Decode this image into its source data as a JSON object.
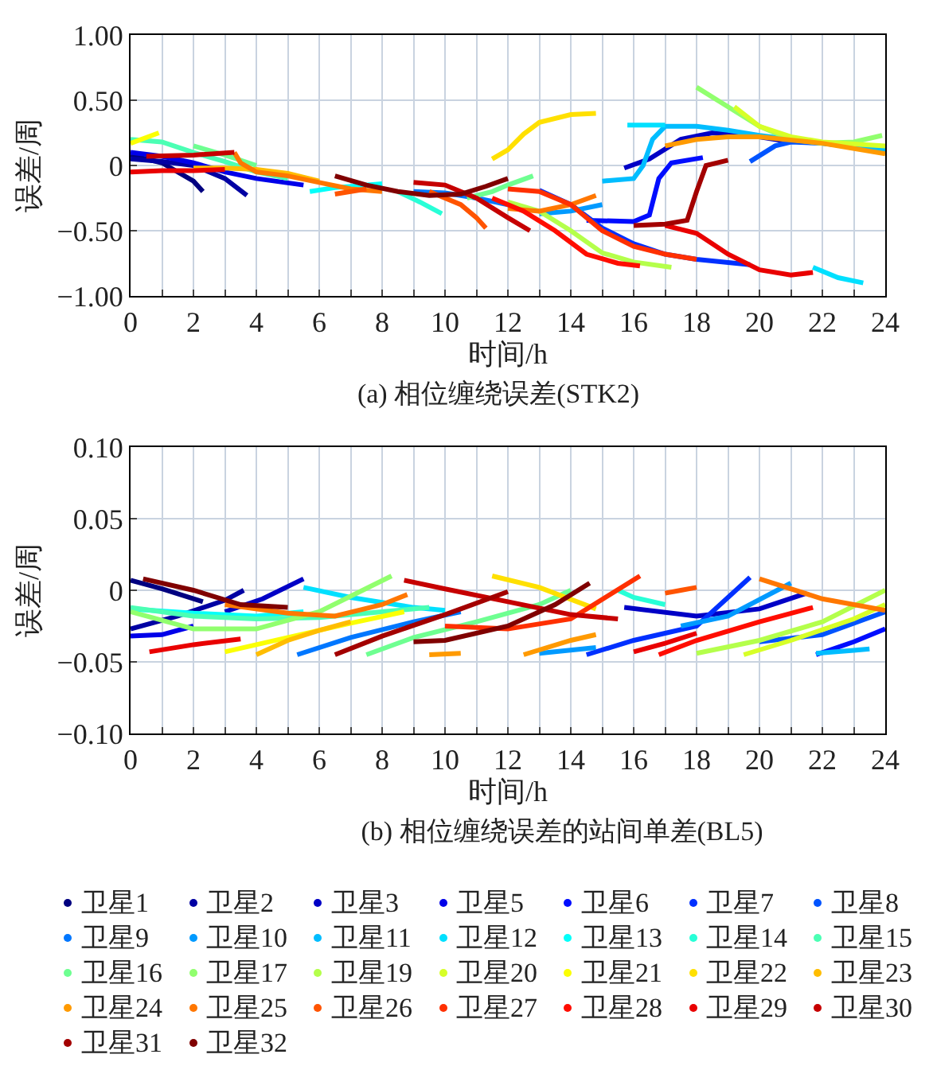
{
  "chart_data": [
    {
      "type": "line",
      "title": "(a) 相位缠绕误差(STK2)",
      "xlabel": "时间/h",
      "ylabel": "误差/周",
      "xlim": [
        0,
        24
      ],
      "ylim": [
        -1,
        1
      ],
      "xticks": [
        0,
        {
          "value": 1,
          "label": null
        },
        2,
        {
          "value": 3,
          "label": null
        },
        4,
        {
          "value": 5,
          "label": null
        },
        6,
        {
          "value": 7,
          "label": null
        },
        8,
        {
          "value": 9,
          "label": null
        },
        10,
        {
          "value": 11,
          "label": null
        },
        12,
        {
          "value": 13,
          "label": null
        },
        14,
        {
          "value": 15,
          "label": null
        },
        16,
        {
          "value": 17,
          "label": null
        },
        18,
        {
          "value": 19,
          "label": null
        },
        20,
        {
          "value": 21,
          "label": null
        },
        22,
        {
          "value": 23,
          "label": null
        },
        24
      ],
      "yticks": [
        {
          "value": -1,
          "label": "−1.00"
        },
        {
          "value": -0.5,
          "label": "−0.50"
        },
        0,
        {
          "value": 0.5,
          "label": "0.50"
        },
        {
          "value": 1,
          "label": "1.00"
        }
      ],
      "grid": true,
      "marker": "none",
      "line_style": "solid",
      "series": [
        {
          "color": "#000080",
          "x": [
            0,
            1,
            2,
            2.3
          ],
          "values": [
            0.08,
            0.02,
            -0.12,
            -0.2
          ]
        },
        {
          "color": "#0000a3",
          "x": [
            0,
            1,
            2,
            3,
            3.7
          ],
          "values": [
            0.05,
            0.03,
            0,
            -0.1,
            -0.23
          ]
        },
        {
          "color": "#0000c6",
          "x": [
            15.7,
            16.5,
            17.5,
            18.5,
            20,
            21
          ],
          "values": [
            -0.02,
            0.05,
            0.2,
            0.25,
            0.22,
            0.18
          ]
        },
        {
          "color": "#0000e9",
          "x": [
            0,
            1,
            2,
            3,
            4,
            5.5
          ],
          "values": [
            0.1,
            0.07,
            0.02,
            -0.05,
            -0.1,
            -0.15
          ]
        },
        {
          "color": "#000dff",
          "x": [
            14.5,
            16,
            16.5,
            16.8,
            17.2,
            18.2
          ],
          "values": [
            -0.42,
            -0.43,
            -0.38,
            -0.1,
            0.02,
            0.06
          ]
        },
        {
          "color": "#0030ff",
          "x": [
            13,
            14,
            15,
            16,
            17,
            18,
            19.7
          ],
          "values": [
            -0.19,
            -0.3,
            -0.48,
            -0.6,
            -0.68,
            -0.72,
            -0.76
          ]
        },
        {
          "color": "#0054ff",
          "x": [
            19.7,
            20.5,
            21,
            22,
            23,
            24
          ],
          "values": [
            0.03,
            0.15,
            0.18,
            0.17,
            0.14,
            0.1
          ]
        },
        {
          "color": "#0077ff",
          "x": [
            9,
            10,
            11,
            12
          ],
          "values": [
            -0.2,
            -0.21,
            -0.25,
            -0.3
          ]
        },
        {
          "color": "#009aff",
          "x": [
            13,
            14,
            15
          ],
          "values": [
            -0.37,
            -0.35,
            -0.3
          ]
        },
        {
          "color": "#00bdff",
          "x": [
            15,
            16,
            16.3,
            16.6,
            17,
            18,
            19,
            20,
            22,
            24
          ],
          "values": [
            -0.12,
            -0.1,
            0,
            0.2,
            0.3,
            0.3,
            0.27,
            0.23,
            0.17,
            0.12
          ]
        },
        {
          "color": "#00e0ff",
          "x": [
            15.8,
            17,
            19,
            21.7,
            22.5,
            23.3
          ],
          "values": [
            0.31,
            0.31,
            null,
            -0.78,
            -0.86,
            -0.9
          ]
        },
        {
          "color": "#04fffa",
          "x": [
            5.7,
            6.5,
            8
          ],
          "values": [
            -0.2,
            -0.17,
            -0.14
          ]
        },
        {
          "color": "#28ffd7",
          "x": [
            8.5,
            9.2,
            9.9
          ],
          "values": [
            -0.2,
            -0.28,
            -0.37
          ]
        },
        {
          "color": "#4bffb4",
          "x": [
            0,
            1,
            2,
            3,
            4,
            5
          ],
          "values": [
            0.2,
            0.18,
            0.1,
            0.03,
            -0.05,
            -0.1
          ]
        },
        {
          "color": "#6eff91",
          "x": [
            2,
            3,
            4,
            7,
            10.7,
            11.5,
            12,
            12.8
          ],
          "values": [
            0.15,
            0.08,
            0,
            null,
            -0.25,
            -0.2,
            -0.15,
            -0.08
          ]
        },
        {
          "color": "#91ff6e",
          "x": [
            18,
            19,
            20,
            21,
            22,
            23,
            23.9
          ],
          "values": [
            0.6,
            0.45,
            0.3,
            0.2,
            0.17,
            0.18,
            0.23
          ]
        },
        {
          "color": "#b4ff4b",
          "x": [
            12,
            13,
            14,
            15,
            16,
            17.2
          ],
          "values": [
            -0.28,
            -0.35,
            -0.5,
            -0.67,
            -0.74,
            -0.78
          ]
        },
        {
          "color": "#d7ff28",
          "x": [
            19.2,
            20,
            21,
            22,
            24
          ],
          "values": [
            0.45,
            0.3,
            0.22,
            0.18,
            0.15
          ]
        },
        {
          "color": "#fbff04",
          "x": [
            0,
            0.9
          ],
          "values": [
            0.17,
            0.25
          ]
        },
        {
          "color": "#ffe000",
          "x": [
            11.5,
            12,
            12.5,
            13,
            14,
            14.8
          ],
          "values": [
            0.05,
            0.12,
            0.24,
            0.33,
            0.39,
            0.4
          ]
        },
        {
          "color": "#ffbd00",
          "x": [
            2,
            3,
            4,
            5,
            6
          ],
          "values": [
            -0.02,
            -0.02,
            -0.03,
            -0.06,
            -0.12
          ]
        },
        {
          "color": "#ff9a00",
          "x": [
            17,
            18,
            19,
            20,
            22,
            24
          ],
          "values": [
            0.15,
            0.2,
            0.22,
            0.22,
            0.17,
            0.09
          ]
        },
        {
          "color": "#ff7700",
          "x": [
            3.3,
            3.5,
            4,
            5,
            6,
            7,
            8,
            10,
            12,
            13,
            14,
            14.8
          ],
          "values": [
            0.1,
            0.02,
            -0.05,
            -0.08,
            -0.13,
            -0.18,
            -0.2,
            null,
            -0.33,
            -0.35,
            -0.3,
            -0.23
          ]
        },
        {
          "color": "#ff5400",
          "x": [
            6.5,
            7.5,
            8.5,
            9.5,
            10.5,
            11,
            11.3
          ],
          "values": [
            -0.22,
            -0.18,
            null,
            -0.2,
            -0.3,
            -0.4,
            -0.48
          ]
        },
        {
          "color": "#ff3000",
          "x": [
            12,
            13,
            14,
            15,
            16,
            17,
            18
          ],
          "values": [
            -0.18,
            -0.2,
            -0.3,
            -0.5,
            -0.62,
            -0.68,
            -0.72
          ]
        },
        {
          "color": "#ff0d00",
          "x": [
            11.5,
            12.5,
            13.5,
            14.5,
            15.5,
            16.2
          ],
          "values": [
            -0.25,
            -0.35,
            -0.5,
            -0.68,
            -0.75,
            -0.77
          ]
        },
        {
          "color": "#e90000",
          "x": [
            0,
            1,
            2,
            3,
            10,
            17,
            18,
            19,
            20,
            21,
            21.7
          ],
          "values": [
            -0.05,
            -0.04,
            -0.04,
            -0.03,
            null,
            -0.46,
            -0.52,
            -0.68,
            -0.8,
            -0.84,
            -0.82
          ]
        },
        {
          "color": "#c60000",
          "x": [
            0.5,
            2,
            3.3,
            6,
            9,
            10,
            11,
            12,
            12.7
          ],
          "values": [
            0.07,
            0.08,
            0.1,
            null,
            -0.13,
            -0.15,
            -0.25,
            -0.4,
            -0.5
          ]
        },
        {
          "color": "#a30000",
          "x": [
            16,
            17,
            17.7,
            18,
            18.3,
            19
          ],
          "values": [
            -0.46,
            -0.45,
            -0.42,
            -0.2,
            0,
            0.04
          ]
        },
        {
          "color": "#800000",
          "x": [
            6.5,
            7.5,
            8.5,
            9.5,
            10.5,
            11.3,
            12
          ],
          "values": [
            -0.08,
            -0.15,
            -0.2,
            -0.23,
            -0.22,
            -0.16,
            -0.1
          ]
        }
      ]
    },
    {
      "type": "line",
      "title": "(b) 相位缠绕误差的站间单差(BL5)",
      "xlabel": "时间/h",
      "ylabel": "误差/周",
      "xlim": [
        0,
        24
      ],
      "ylim": [
        -0.1,
        0.1
      ],
      "xticks": [
        0,
        {
          "value": 1,
          "label": null
        },
        2,
        {
          "value": 3,
          "label": null
        },
        4,
        {
          "value": 5,
          "label": null
        },
        6,
        {
          "value": 7,
          "label": null
        },
        8,
        {
          "value": 9,
          "label": null
        },
        10,
        {
          "value": 11,
          "label": null
        },
        12,
        {
          "value": 13,
          "label": null
        },
        14,
        {
          "value": 15,
          "label": null
        },
        16,
        {
          "value": 17,
          "label": null
        },
        18,
        {
          "value": 19,
          "label": null
        },
        20,
        {
          "value": 21,
          "label": null
        },
        22,
        {
          "value": 23,
          "label": null
        },
        24
      ],
      "yticks": [
        {
          "value": -0.1,
          "label": "−0.10"
        },
        {
          "value": -0.05,
          "label": "−0.05"
        },
        0,
        {
          "value": 0.05,
          "label": "0.05"
        },
        {
          "value": 0.1,
          "label": "0.10"
        }
      ],
      "grid": true,
      "legend": "bottom",
      "marker": "none",
      "line_style": "solid",
      "series": [
        {
          "name": "卫星1",
          "color": "#000080",
          "x": [
            0,
            1,
            2.3
          ],
          "values": [
            0.007,
            0.001,
            -0.008
          ]
        },
        {
          "name": "卫星2",
          "color": "#0000a3",
          "x": [
            0,
            1.5,
            3,
            3.6
          ],
          "values": [
            -0.027,
            -0.018,
            -0.007,
            0
          ]
        },
        {
          "name": "卫星3",
          "color": "#0000c6",
          "x": [
            3,
            4.2,
            5.5,
            10,
            15.7,
            18,
            20,
            21.5
          ],
          "values": [
            -0.015,
            -0.006,
            0.008,
            null,
            -0.012,
            -0.018,
            -0.013,
            -0.002
          ]
        },
        {
          "name": "卫星5",
          "color": "#0000e9",
          "x": [
            0,
            1,
            2
          ],
          "values": [
            -0.032,
            -0.031,
            -0.025
          ]
        },
        {
          "name": "卫星6",
          "color": "#000dff",
          "x": [
            21.8,
            23,
            24
          ],
          "values": [
            -0.045,
            -0.036,
            -0.027
          ]
        },
        {
          "name": "卫星7",
          "color": "#0030ff",
          "x": [
            14.5,
            16,
            18,
            19.7
          ],
          "values": [
            -0.045,
            -0.035,
            -0.025,
            0.009
          ]
        },
        {
          "name": "卫星8",
          "color": "#0054ff",
          "x": [
            20,
            22,
            24
          ],
          "values": [
            -0.036,
            -0.031,
            -0.015
          ]
        },
        {
          "name": "卫星9",
          "color": "#0077ff",
          "x": [
            5.3,
            7,
            9,
            10.5
          ],
          "values": [
            -0.045,
            -0.033,
            -0.022,
            -0.015
          ]
        },
        {
          "name": "卫星10",
          "color": "#009aff",
          "x": [
            13,
            14.8,
            16,
            17.5,
            19,
            21
          ],
          "values": [
            -0.044,
            -0.04,
            null,
            -0.025,
            -0.018,
            0.005
          ]
        },
        {
          "name": "卫星11",
          "color": "#00bdff",
          "x": [
            21.8,
            23,
            23.5
          ],
          "values": [
            -0.044,
            -0.042,
            -0.041
          ]
        },
        {
          "name": "卫星12",
          "color": "#00e0ff",
          "x": [
            5.5,
            7,
            9,
            10
          ],
          "values": [
            0.002,
            -0.005,
            -0.012,
            -0.014
          ]
        },
        {
          "name": "卫星13",
          "color": "#04fffa",
          "x": [
            0,
            2,
            4,
            5.5
          ],
          "values": [
            -0.013,
            -0.016,
            -0.018,
            -0.015
          ]
        },
        {
          "name": "卫星14",
          "color": "#28ffd7",
          "x": [
            15.5,
            16,
            17
          ],
          "values": [
            0,
            -0.005,
            -0.01
          ]
        },
        {
          "name": "卫星15",
          "color": "#4bffb4",
          "x": [
            0,
            2,
            4,
            6,
            8,
            9.5
          ],
          "values": [
            -0.012,
            -0.018,
            -0.02,
            -0.019,
            -0.015,
            -0.012
          ]
        },
        {
          "name": "卫星16",
          "color": "#6eff91",
          "x": [
            7.5,
            9,
            11,
            13,
            14
          ],
          "values": [
            -0.045,
            -0.033,
            -0.022,
            -0.01,
            0
          ]
        },
        {
          "name": "卫星17",
          "color": "#91ff6e",
          "x": [
            0,
            2,
            4,
            6,
            8.3
          ],
          "values": [
            -0.015,
            -0.027,
            -0.027,
            -0.015,
            0.01
          ]
        },
        {
          "name": "卫星19",
          "color": "#b4ff4b",
          "x": [
            18,
            20,
            22,
            24
          ],
          "values": [
            -0.044,
            -0.035,
            -0.022,
            0
          ]
        },
        {
          "name": "卫星20",
          "color": "#d7ff28",
          "x": [
            19.5,
            21,
            23,
            24
          ],
          "values": [
            -0.045,
            -0.035,
            -0.02,
            -0.01
          ]
        },
        {
          "name": "卫星21",
          "color": "#fbff04",
          "x": [
            3,
            5,
            7,
            8.7
          ],
          "values": [
            -0.043,
            -0.033,
            -0.023,
            -0.015
          ]
        },
        {
          "name": "卫星22",
          "color": "#ffe000",
          "x": [
            11.5,
            13,
            14.8
          ],
          "values": [
            0.01,
            0.002,
            -0.013
          ]
        },
        {
          "name": "卫星23",
          "color": "#ffbd00",
          "x": [
            4,
            5,
            6,
            7
          ],
          "values": [
            -0.045,
            -0.035,
            -0.028,
            -0.022
          ]
        },
        {
          "name": "卫星24",
          "color": "#ff9a00",
          "x": [
            9.5,
            10.5,
            11.5,
            12.5,
            14,
            14.8
          ],
          "values": [
            -0.045,
            -0.044,
            null,
            -0.045,
            -0.035,
            -0.031
          ]
        },
        {
          "name": "卫星25",
          "color": "#ff7700",
          "x": [
            3,
            5,
            6.5,
            8,
            8.8,
            14,
            20,
            22,
            24
          ],
          "values": [
            -0.01,
            -0.016,
            -0.018,
            -0.01,
            -0.003,
            null,
            0.008,
            -0.006,
            -0.014
          ]
        },
        {
          "name": "卫星26",
          "color": "#ff5400",
          "x": [
            17,
            17.5,
            18
          ],
          "values": [
            -0.002,
            0,
            0.002
          ]
        },
        {
          "name": "卫星27",
          "color": "#ff3000",
          "x": [
            10,
            12,
            14,
            16.2
          ],
          "values": [
            -0.025,
            -0.027,
            -0.02,
            0.01
          ]
        },
        {
          "name": "卫星28",
          "color": "#ff0d00",
          "x": [
            16.8,
            18,
            20,
            21.7
          ],
          "values": [
            -0.045,
            -0.035,
            -0.022,
            -0.012
          ]
        },
        {
          "name": "卫星29",
          "color": "#e90000",
          "x": [
            0.6,
            2,
            3.5,
            10,
            16,
            17,
            18
          ],
          "values": [
            -0.043,
            -0.038,
            -0.034,
            null,
            -0.043,
            -0.037,
            -0.03
          ]
        },
        {
          "name": "卫星30",
          "color": "#c60000",
          "x": [
            8.7,
            10,
            12,
            14,
            15.5
          ],
          "values": [
            0.007,
            0.001,
            -0.008,
            -0.017,
            -0.02
          ]
        },
        {
          "name": "卫星31",
          "color": "#a30000",
          "x": [
            6.5,
            8,
            10,
            12
          ],
          "values": [
            -0.045,
            -0.032,
            -0.017,
            -0.001
          ]
        },
        {
          "name": "卫星32",
          "color": "#800000",
          "x": [
            0.4,
            2,
            3.5,
            5,
            7,
            9,
            10,
            12,
            13.5,
            14.6
          ],
          "values": [
            0.008,
            0,
            -0.01,
            -0.012,
            null,
            -0.036,
            -0.035,
            -0.025,
            -0.01,
            0.005
          ]
        }
      ]
    }
  ]
}
